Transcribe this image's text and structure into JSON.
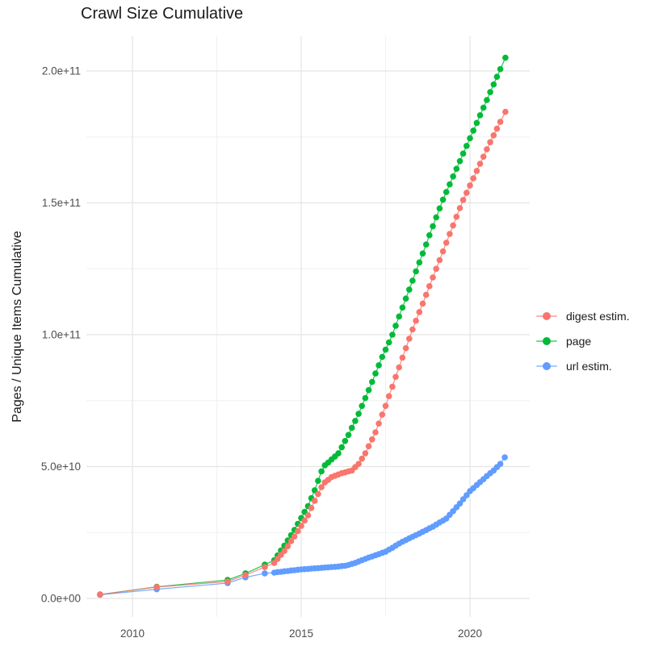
{
  "page": {
    "title": "Crawl Size Cumulative"
  },
  "chart_data": {
    "type": "line",
    "title": "Crawl Size Cumulative",
    "xlabel": "",
    "ylabel": "Pages / Unique Items Cumulative",
    "y_unit": "items, billions (value 1 = 1e9 items)",
    "x_ticks": [
      2010,
      2015,
      2020
    ],
    "x_tick_labels": [
      "2010",
      "2015",
      "2020"
    ],
    "x_minor_ticks": [
      2012.5,
      2017.5
    ],
    "y_ticks_billions": [
      0,
      50,
      100,
      150,
      200
    ],
    "y_tick_labels": [
      "0.0e+00",
      "5.0e+10",
      "1.0e+11",
      "1.5e+11",
      "2.0e+11"
    ],
    "y_minor_ticks_billions": [
      25,
      75,
      125,
      175
    ],
    "xlim": [
      2008.6,
      2021.8
    ],
    "ylim_billions": [
      -8,
      215
    ],
    "grid": true,
    "legend_position": "right",
    "series": [
      {
        "name": "digest estim.",
        "color": "#F8766D",
        "points": [
          [
            2009.04,
            1.5
          ],
          [
            2010.72,
            4.3
          ],
          [
            2012.82,
            6.4
          ],
          [
            2013.35,
            8.9
          ],
          [
            2013.92,
            11.9
          ],
          [
            2014.2,
            13.5
          ],
          [
            2014.3,
            15
          ],
          [
            2014.4,
            16.5
          ],
          [
            2014.5,
            18
          ],
          [
            2014.6,
            19.8
          ],
          [
            2014.7,
            21.7
          ],
          [
            2014.8,
            23.5
          ],
          [
            2014.9,
            25.5
          ],
          [
            2015.0,
            27.5
          ],
          [
            2015.1,
            29.5
          ],
          [
            2015.2,
            31.5
          ],
          [
            2015.3,
            34.3
          ],
          [
            2015.4,
            37
          ],
          [
            2015.5,
            39.6
          ],
          [
            2015.6,
            42.2
          ],
          [
            2015.7,
            44
          ],
          [
            2015.8,
            45
          ],
          [
            2015.9,
            46
          ],
          [
            2016.0,
            46.5
          ],
          [
            2016.1,
            47
          ],
          [
            2016.2,
            47.5
          ],
          [
            2016.3,
            47.8
          ],
          [
            2016.4,
            48.2
          ],
          [
            2016.5,
            48.5
          ],
          [
            2016.6,
            49.8
          ],
          [
            2016.7,
            51
          ],
          [
            2016.8,
            53
          ],
          [
            2016.9,
            55
          ],
          [
            2017.0,
            57.7
          ],
          [
            2017.1,
            60.3
          ],
          [
            2017.2,
            63
          ],
          [
            2017.3,
            66.3
          ],
          [
            2017.4,
            69.7
          ],
          [
            2017.5,
            73
          ],
          [
            2017.6,
            76.7
          ],
          [
            2017.7,
            80.3
          ],
          [
            2017.8,
            84
          ],
          [
            2017.9,
            87.6
          ],
          [
            2018.0,
            91.3
          ],
          [
            2018.1,
            94.9
          ],
          [
            2018.2,
            98.5
          ],
          [
            2018.3,
            102
          ],
          [
            2018.4,
            105.3
          ],
          [
            2018.5,
            108.6
          ],
          [
            2018.6,
            111.8
          ],
          [
            2018.7,
            115.1
          ],
          [
            2018.8,
            118.4
          ],
          [
            2018.9,
            121.7
          ],
          [
            2019.0,
            125
          ],
          [
            2019.1,
            128.3
          ],
          [
            2019.2,
            131.6
          ],
          [
            2019.3,
            134.9
          ],
          [
            2019.4,
            138.2
          ],
          [
            2019.5,
            141.4
          ],
          [
            2019.6,
            144.7
          ],
          [
            2019.7,
            148
          ],
          [
            2019.8,
            151.1
          ],
          [
            2019.9,
            153.8
          ],
          [
            2020.0,
            156.6
          ],
          [
            2020.1,
            159.3
          ],
          [
            2020.2,
            162.1
          ],
          [
            2020.3,
            164.8
          ],
          [
            2020.4,
            167.5
          ],
          [
            2020.5,
            170.3
          ],
          [
            2020.6,
            173
          ],
          [
            2020.7,
            175.6
          ],
          [
            2020.8,
            178.1
          ],
          [
            2020.9,
            180.7
          ],
          [
            2021.05,
            184.5
          ]
        ]
      },
      {
        "name": "page",
        "color": "#00BA38",
        "points": [
          [
            2009.04,
            1.5
          ],
          [
            2010.72,
            4.4
          ],
          [
            2012.82,
            7
          ],
          [
            2013.35,
            9.5
          ],
          [
            2013.92,
            12.8
          ],
          [
            2014.2,
            14.5
          ],
          [
            2014.3,
            16.3
          ],
          [
            2014.4,
            18.2
          ],
          [
            2014.5,
            20
          ],
          [
            2014.6,
            22
          ],
          [
            2014.7,
            24
          ],
          [
            2014.8,
            26
          ],
          [
            2014.9,
            28.3
          ],
          [
            2015.0,
            30.5
          ],
          [
            2015.1,
            32.8
          ],
          [
            2015.2,
            35
          ],
          [
            2015.3,
            38
          ],
          [
            2015.4,
            41
          ],
          [
            2015.5,
            44.6
          ],
          [
            2015.6,
            48.2
          ],
          [
            2015.7,
            50.5
          ],
          [
            2015.8,
            51.5
          ],
          [
            2015.9,
            52.7
          ],
          [
            2016.0,
            53.8
          ],
          [
            2016.1,
            55
          ],
          [
            2016.2,
            57.3
          ],
          [
            2016.3,
            59.7
          ],
          [
            2016.4,
            62
          ],
          [
            2016.5,
            64.7
          ],
          [
            2016.6,
            67.3
          ],
          [
            2016.7,
            70
          ],
          [
            2016.8,
            73
          ],
          [
            2016.9,
            76
          ],
          [
            2017.0,
            79
          ],
          [
            2017.1,
            82.1
          ],
          [
            2017.2,
            85.3
          ],
          [
            2017.3,
            88.4
          ],
          [
            2017.4,
            91.6
          ],
          [
            2017.5,
            94.3
          ],
          [
            2017.6,
            97.1
          ],
          [
            2017.7,
            100
          ],
          [
            2017.8,
            103.4
          ],
          [
            2017.9,
            106.9
          ],
          [
            2018.0,
            110.3
          ],
          [
            2018.1,
            113.7
          ],
          [
            2018.2,
            117.1
          ],
          [
            2018.3,
            120.5
          ],
          [
            2018.4,
            124
          ],
          [
            2018.5,
            127.4
          ],
          [
            2018.6,
            130.8
          ],
          [
            2018.7,
            134.2
          ],
          [
            2018.8,
            137.7
          ],
          [
            2018.9,
            141.1
          ],
          [
            2019.0,
            144.5
          ],
          [
            2019.1,
            147.9
          ],
          [
            2019.2,
            151.2
          ],
          [
            2019.3,
            154.1
          ],
          [
            2019.4,
            157
          ],
          [
            2019.5,
            160
          ],
          [
            2019.6,
            162.9
          ],
          [
            2019.7,
            165.8
          ],
          [
            2019.8,
            168.7
          ],
          [
            2019.9,
            171.6
          ],
          [
            2020.0,
            174.5
          ],
          [
            2020.1,
            177.4
          ],
          [
            2020.2,
            180.3
          ],
          [
            2020.3,
            183.2
          ],
          [
            2020.4,
            186.1
          ],
          [
            2020.5,
            189
          ],
          [
            2020.6,
            192
          ],
          [
            2020.7,
            194.9
          ],
          [
            2020.8,
            197.8
          ],
          [
            2020.9,
            200.7
          ],
          [
            2021.05,
            205
          ]
        ]
      },
      {
        "name": "url estim.",
        "color": "#619CFF",
        "points": [
          [
            2009.04,
            1.4
          ],
          [
            2010.72,
            3.5
          ],
          [
            2012.82,
            5.8
          ],
          [
            2013.35,
            8
          ],
          [
            2013.92,
            9.5
          ],
          [
            2014.2,
            9.8
          ],
          [
            2014.3,
            10
          ],
          [
            2014.4,
            10.1
          ],
          [
            2014.5,
            10.3
          ],
          [
            2014.6,
            10.4
          ],
          [
            2014.7,
            10.6
          ],
          [
            2014.8,
            10.7
          ],
          [
            2014.9,
            10.9
          ],
          [
            2015.0,
            11
          ],
          [
            2015.1,
            11.1
          ],
          [
            2015.2,
            11.2
          ],
          [
            2015.3,
            11.3
          ],
          [
            2015.4,
            11.4
          ],
          [
            2015.5,
            11.5
          ],
          [
            2015.6,
            11.6
          ],
          [
            2015.7,
            11.7
          ],
          [
            2015.8,
            11.8
          ],
          [
            2015.9,
            11.9
          ],
          [
            2016.0,
            12
          ],
          [
            2016.1,
            12.1
          ],
          [
            2016.2,
            12.3
          ],
          [
            2016.3,
            12.4
          ],
          [
            2016.4,
            12.7
          ],
          [
            2016.5,
            13.1
          ],
          [
            2016.6,
            13.5
          ],
          [
            2016.7,
            14
          ],
          [
            2016.8,
            14.5
          ],
          [
            2016.9,
            15
          ],
          [
            2017.0,
            15.5
          ],
          [
            2017.1,
            15.9
          ],
          [
            2017.2,
            16.4
          ],
          [
            2017.3,
            16.8
          ],
          [
            2017.4,
            17.3
          ],
          [
            2017.5,
            17.7
          ],
          [
            2017.6,
            18.5
          ],
          [
            2017.7,
            19.2
          ],
          [
            2017.8,
            20
          ],
          [
            2017.9,
            20.8
          ],
          [
            2018.0,
            21.5
          ],
          [
            2018.1,
            22.1
          ],
          [
            2018.2,
            22.8
          ],
          [
            2018.3,
            23.4
          ],
          [
            2018.4,
            24
          ],
          [
            2018.5,
            24.6
          ],
          [
            2018.6,
            25.3
          ],
          [
            2018.7,
            25.9
          ],
          [
            2018.8,
            26.6
          ],
          [
            2018.9,
            27.2
          ],
          [
            2019.0,
            28
          ],
          [
            2019.1,
            28.8
          ],
          [
            2019.2,
            29.5
          ],
          [
            2019.3,
            30.3
          ],
          [
            2019.4,
            31.7
          ],
          [
            2019.5,
            33.1
          ],
          [
            2019.6,
            34.6
          ],
          [
            2019.7,
            36
          ],
          [
            2019.8,
            37.6
          ],
          [
            2019.9,
            39.1
          ],
          [
            2020.0,
            40.7
          ],
          [
            2020.1,
            41.8
          ],
          [
            2020.2,
            43
          ],
          [
            2020.3,
            44.1
          ],
          [
            2020.4,
            45.2
          ],
          [
            2020.5,
            46.4
          ],
          [
            2020.6,
            47.5
          ],
          [
            2020.7,
            48.5
          ],
          [
            2020.8,
            49.8
          ],
          [
            2020.9,
            51
          ],
          [
            2021.03,
            53.5
          ]
        ]
      }
    ]
  }
}
